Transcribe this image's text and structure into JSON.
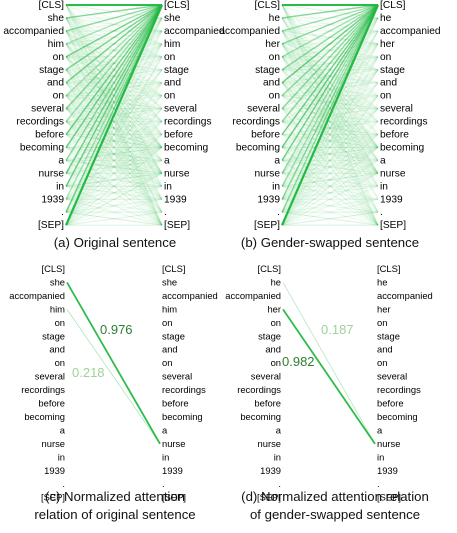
{
  "colors": {
    "edge": "#1eb73f",
    "label_strong": "#2e7d32",
    "label_faint": "#9fd19a"
  },
  "panels": [
    {
      "id": "a",
      "caption": [
        "(a) Original sentence"
      ],
      "left_tokens": [
        "[CLS]",
        "she",
        "accompanied",
        "him",
        "on",
        "stage",
        "and",
        "on",
        "several",
        "recordings",
        "before",
        "becoming",
        "a",
        "nurse",
        "in",
        "1939",
        ".",
        "[SEP]"
      ],
      "right_tokens": [
        "[CLS]",
        "she",
        "accompanied",
        "him",
        "on",
        "stage",
        "and",
        "on",
        "several",
        "recordings",
        "before",
        "becoming",
        "a",
        "nurse",
        "in",
        "1939",
        ".",
        "[SEP]"
      ],
      "mode": "full"
    },
    {
      "id": "b",
      "caption": [
        "(b) Gender-swapped sentence"
      ],
      "left_tokens": [
        "[CLS]",
        "he",
        "accompanied",
        "her",
        "on",
        "stage",
        "and",
        "on",
        "several",
        "recordings",
        "before",
        "becoming",
        "a",
        "nurse",
        "in",
        "1939",
        ".",
        "[SEP]"
      ],
      "right_tokens": [
        "[CLS]",
        "he",
        "accompanied",
        "her",
        "on",
        "stage",
        "and",
        "on",
        "several",
        "recordings",
        "before",
        "becoming",
        "a",
        "nurse",
        "in",
        "1939",
        ".",
        "[SEP]"
      ],
      "mode": "full"
    },
    {
      "id": "c",
      "caption": [
        "(c) Normalized attention",
        "relation of original sentence"
      ],
      "left_tokens": [
        "[CLS]",
        "she",
        "accompanied",
        "him",
        "on",
        "stage",
        "and",
        "on",
        "several",
        "recordings",
        "before",
        "becoming",
        "a",
        "nurse",
        "in",
        "1939",
        ".",
        "[SEP]"
      ],
      "right_tokens": [
        "[CLS]",
        "she",
        "accompanied",
        "him",
        "on",
        "stage",
        "and",
        "on",
        "several",
        "recordings",
        "before",
        "becoming",
        "a",
        "nurse",
        "in",
        "1939",
        ".",
        "[SEP]"
      ],
      "mode": "pair",
      "relations": [
        {
          "from": 1,
          "to": 13,
          "weight": 0.976,
          "label": "0.976"
        },
        {
          "from": 3,
          "to": 13,
          "weight": 0.218,
          "label": "0.218"
        }
      ]
    },
    {
      "id": "d",
      "caption": [
        "(d) Normalized attention relation",
        "of gender-swapped sentence"
      ],
      "left_tokens": [
        "[CLS]",
        "he",
        "accompanied",
        "her",
        "on",
        "stage",
        "and",
        "on",
        "several",
        "recordings",
        "before",
        "becoming",
        "a",
        "nurse",
        "in",
        "1939",
        ".",
        "[SEP]"
      ],
      "right_tokens": [
        "[CLS]",
        "he",
        "accompanied",
        "her",
        "on",
        "stage",
        "and",
        "on",
        "several",
        "recordings",
        "before",
        "becoming",
        "a",
        "nurse",
        "in",
        "1939",
        ".",
        "[SEP]"
      ],
      "mode": "pair",
      "relations": [
        {
          "from": 1,
          "to": 13,
          "weight": 0.187,
          "label": "0.187"
        },
        {
          "from": 3,
          "to": 13,
          "weight": 0.982,
          "label": "0.982"
        }
      ]
    }
  ]
}
